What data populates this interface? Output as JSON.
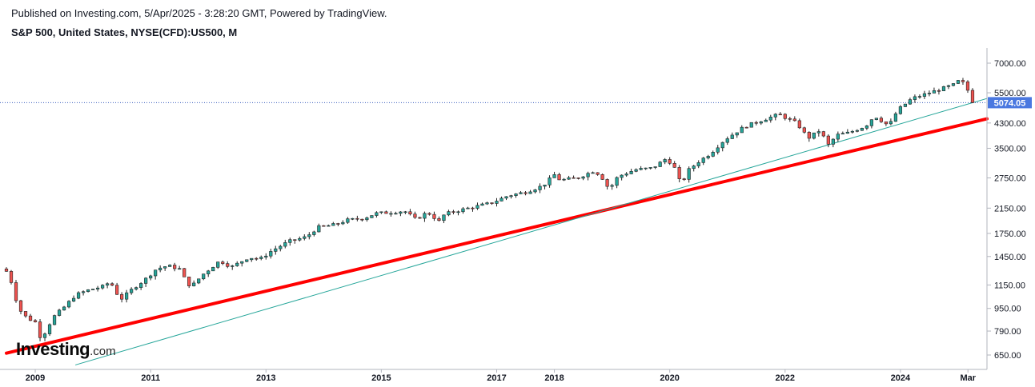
{
  "header": {
    "published": "Published on Investing.com, 5/Apr/2025 - 3:28:20 GMT, Powered by TradingView.",
    "symbol": "S&P 500, United States, NYSE(CFD):US500, M"
  },
  "logo": {
    "main": "Investing",
    "suffix": ".com"
  },
  "colors": {
    "up": "#26a69a",
    "down": "#ef5350",
    "red_trendline": "#ff0000",
    "teal_trendline": "#26a69a",
    "price_label": "#4a78e0",
    "axis": "#b2b5be"
  },
  "chart_data": {
    "type": "candlestick",
    "interval": "M",
    "y_scale": "log",
    "ylim": [
      600,
      8200
    ],
    "xlim": [
      2008.5,
      2025.5
    ],
    "y_ticks": [
      7000,
      5500,
      4300,
      3500,
      2750,
      2150,
      1750,
      1450,
      1150,
      950,
      790,
      650
    ],
    "y_tick_labels": [
      "7000.00",
      "5500.00",
      "4300.00",
      "3500.00",
      "2750.00",
      "2150.00",
      "1750.00",
      "1450.00",
      "1150.00",
      "950.00",
      "790.00",
      "650.00"
    ],
    "x_ticks": [
      {
        "label": "2009",
        "x": 2009.0
      },
      {
        "label": "2011",
        "x": 2011.0
      },
      {
        "label": "2013",
        "x": 2013.0
      },
      {
        "label": "2015",
        "x": 2015.0
      },
      {
        "label": "2017",
        "x": 2017.0
      },
      {
        "label": "2018",
        "x": 2018.0
      },
      {
        "label": "2020",
        "x": 2020.0
      },
      {
        "label": "2022",
        "x": 2022.0
      },
      {
        "label": "2024",
        "x": 2024.0
      },
      {
        "label": "Mar",
        "x": 2025.17
      }
    ],
    "last_price": 5074.05,
    "last_price_label": "5074.05",
    "trendlines": [
      {
        "name": "red",
        "from": [
          2008.5,
          660
        ],
        "to": [
          2025.5,
          4450
        ]
      },
      {
        "name": "teal",
        "from": [
          2009.7,
          600
        ],
        "to": [
          2025.5,
          5250
        ]
      }
    ],
    "anchors": [
      [
        2008.5,
        1285
      ],
      [
        2008.6,
        1160
      ],
      [
        2008.7,
        960
      ],
      [
        2008.8,
        900
      ],
      [
        2008.9,
        870
      ],
      [
        2009.0,
        850
      ],
      [
        2009.1,
        740
      ],
      [
        2009.2,
        800
      ],
      [
        2009.3,
        880
      ],
      [
        2009.5,
        960
      ],
      [
        2009.7,
        1060
      ],
      [
        2009.9,
        1100
      ],
      [
        2010.2,
        1140
      ],
      [
        2010.3,
        1185
      ],
      [
        2010.4,
        1080
      ],
      [
        2010.5,
        1030
      ],
      [
        2010.7,
        1120
      ],
      [
        2010.9,
        1200
      ],
      [
        2011.1,
        1310
      ],
      [
        2011.3,
        1345
      ],
      [
        2011.5,
        1310
      ],
      [
        2011.6,
        1200
      ],
      [
        2011.7,
        1130
      ],
      [
        2011.9,
        1250
      ],
      [
        2012.2,
        1400
      ],
      [
        2012.4,
        1330
      ],
      [
        2012.7,
        1440
      ],
      [
        2012.9,
        1420
      ],
      [
        2013.1,
        1520
      ],
      [
        2013.4,
        1640
      ],
      [
        2013.7,
        1700
      ],
      [
        2013.9,
        1840
      ],
      [
        2014.2,
        1880
      ],
      [
        2014.4,
        1950
      ],
      [
        2014.7,
        1980
      ],
      [
        2014.9,
        2060
      ],
      [
        2015.2,
        2080
      ],
      [
        2015.4,
        2100
      ],
      [
        2015.6,
        1960
      ],
      [
        2015.8,
        2080
      ],
      [
        2016.0,
        1930
      ],
      [
        2016.1,
        2050
      ],
      [
        2016.3,
        2100
      ],
      [
        2016.6,
        2170
      ],
      [
        2016.9,
        2240
      ],
      [
        2017.2,
        2380
      ],
      [
        2017.5,
        2450
      ],
      [
        2017.8,
        2580
      ],
      [
        2018.0,
        2820
      ],
      [
        2018.1,
        2700
      ],
      [
        2018.4,
        2750
      ],
      [
        2018.7,
        2920
      ],
      [
        2018.85,
        2720
      ],
      [
        2018.95,
        2500
      ],
      [
        2019.1,
        2780
      ],
      [
        2019.4,
        2940
      ],
      [
        2019.7,
        2980
      ],
      [
        2019.95,
        3230
      ],
      [
        2020.1,
        2950
      ],
      [
        2020.2,
        2580
      ],
      [
        2020.3,
        2900
      ],
      [
        2020.5,
        3140
      ],
      [
        2020.7,
        3350
      ],
      [
        2020.95,
        3750
      ],
      [
        2021.3,
        4180
      ],
      [
        2021.6,
        4400
      ],
      [
        2021.9,
        4620
      ],
      [
        2022.0,
        4500
      ],
      [
        2022.2,
        4300
      ],
      [
        2022.4,
        3800
      ],
      [
        2022.6,
        4050
      ],
      [
        2022.75,
        3600
      ],
      [
        2022.9,
        3900
      ],
      [
        2023.1,
        3970
      ],
      [
        2023.4,
        4200
      ],
      [
        2023.55,
        4560
      ],
      [
        2023.8,
        4200
      ],
      [
        2023.95,
        4770
      ],
      [
        2024.2,
        5250
      ],
      [
        2024.5,
        5500
      ],
      [
        2024.8,
        5760
      ],
      [
        2024.95,
        5900
      ],
      [
        2025.0,
        6040
      ],
      [
        2025.1,
        5950
      ],
      [
        2025.17,
        5600
      ],
      [
        2025.26,
        5074
      ]
    ]
  }
}
